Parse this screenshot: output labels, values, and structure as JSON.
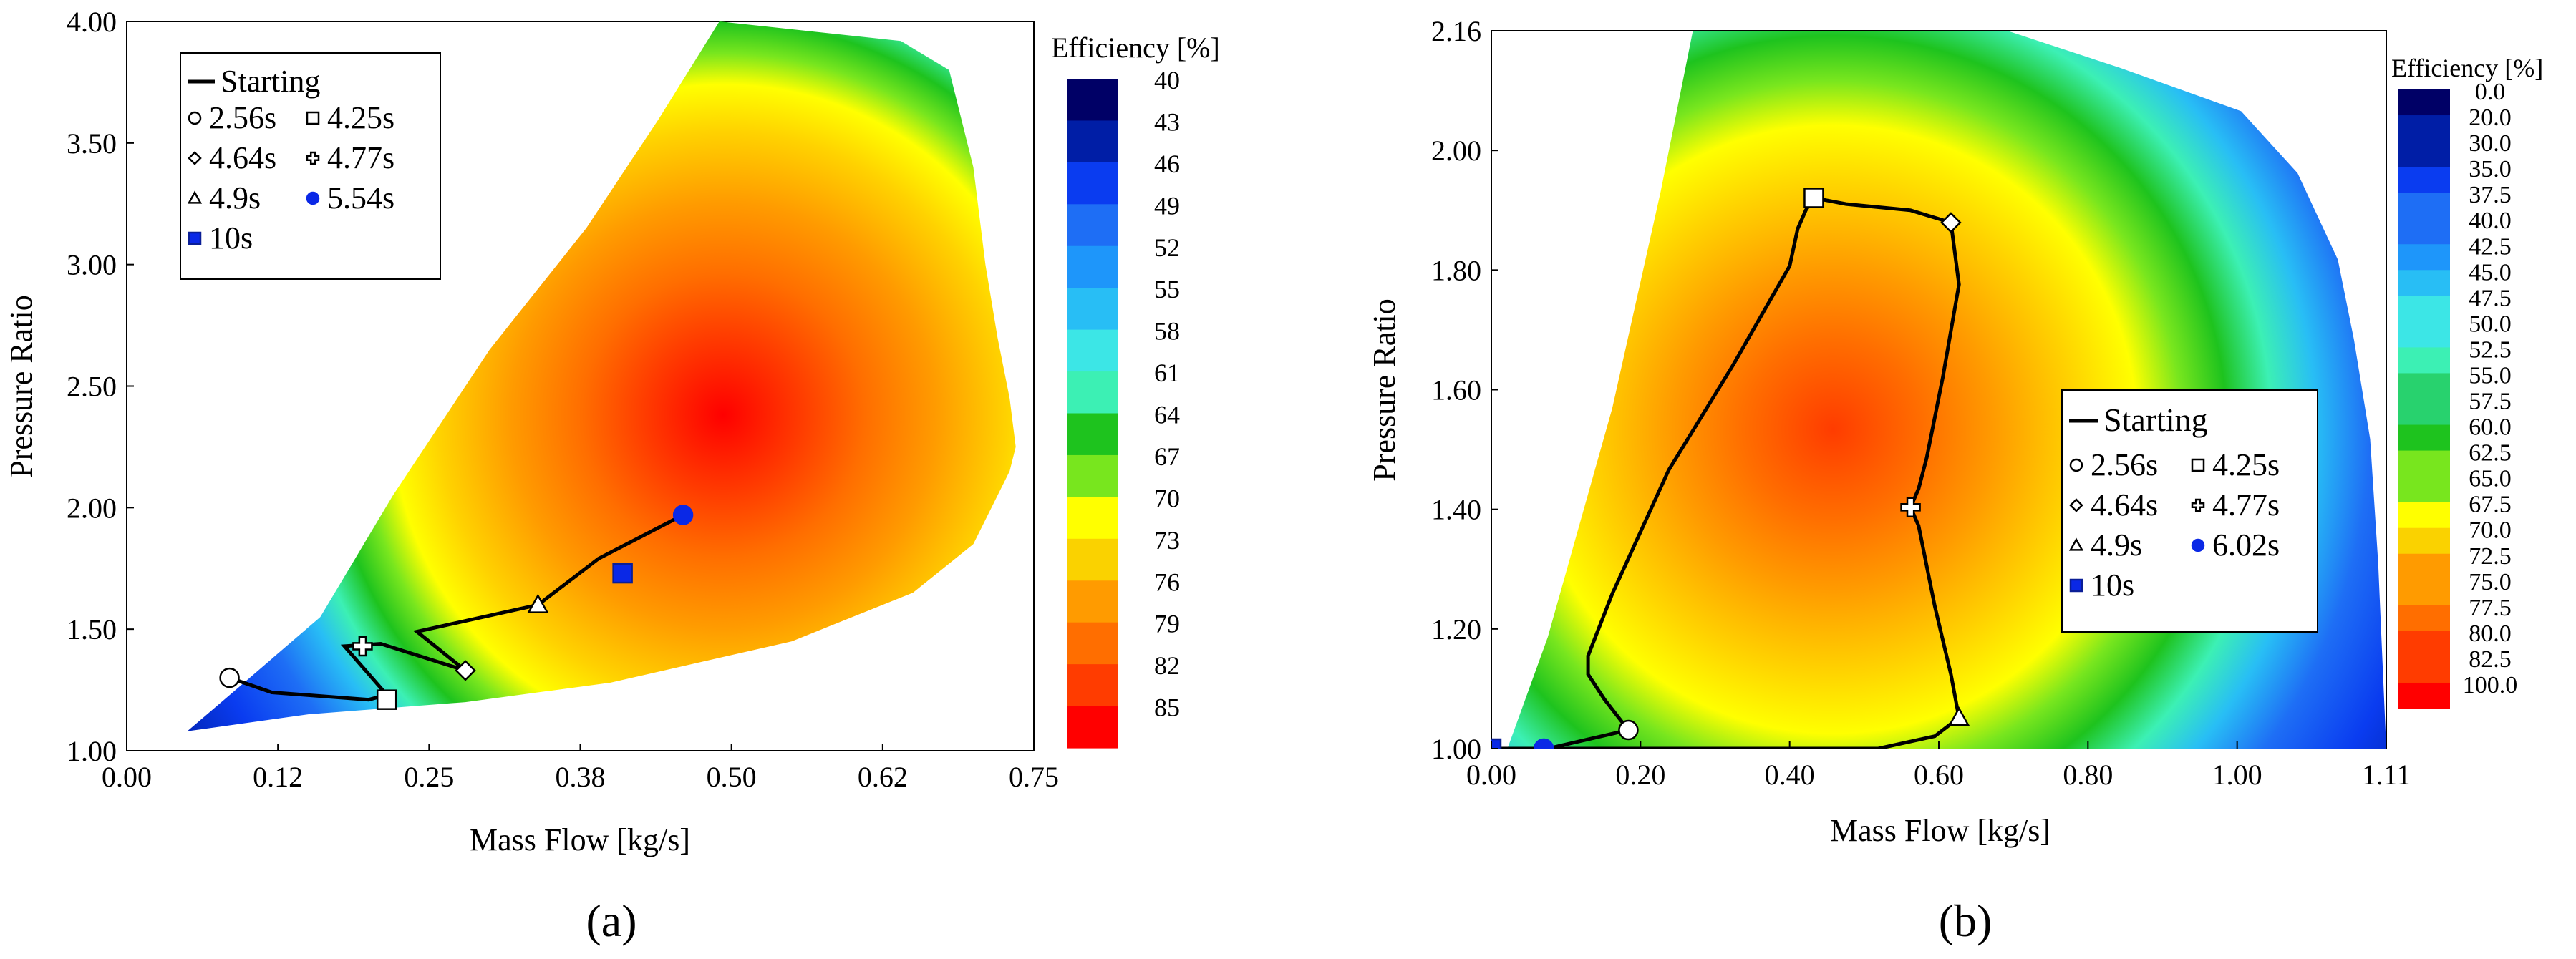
{
  "figure": {
    "panels": [
      {
        "label": "(a)",
        "xlabel": "Mass Flow [kg/s]",
        "ylabel": "Pressure Ratio",
        "xticks": [
          "0.00",
          "0.12",
          "0.25",
          "0.38",
          "0.50",
          "0.62",
          "0.75"
        ],
        "yticks": [
          "1.00",
          "1.50",
          "2.00",
          "2.50",
          "3.00",
          "3.50",
          "4.00"
        ],
        "colorbar_title": "Efficiency [%]",
        "colorbar_labels": [
          "40",
          "43",
          "46",
          "49",
          "52",
          "55",
          "58",
          "61",
          "64",
          "67",
          "70",
          "73",
          "76",
          "79",
          "82",
          "85"
        ],
        "legend": {
          "line_label": "Starting",
          "markers": [
            {
              "symbol": "open-circle",
              "label": "2.56s"
            },
            {
              "symbol": "open-square",
              "label": "4.25s"
            },
            {
              "symbol": "open-diamond",
              "label": "4.64s"
            },
            {
              "symbol": "open-cross",
              "label": "4.77s"
            },
            {
              "symbol": "open-triangle",
              "label": "4.9s"
            },
            {
              "symbol": "filled-circle",
              "label": "5.54s"
            },
            {
              "symbol": "filled-square",
              "label": "10s"
            }
          ]
        }
      },
      {
        "label": "(b)",
        "xlabel": "Mass Flow [kg/s]",
        "ylabel": "Pressure Ratio",
        "xticks": [
          "0.00",
          "0.20",
          "0.40",
          "0.60",
          "0.80",
          "1.00",
          "1.11"
        ],
        "yticks": [
          "1.00",
          "1.20",
          "1.40",
          "1.60",
          "1.80",
          "2.00",
          "2.16"
        ],
        "colorbar_title": "Efficiency [%]",
        "colorbar_labels": [
          "0.0",
          "20.0",
          "30.0",
          "35.0",
          "37.5",
          "40.0",
          "42.5",
          "45.0",
          "47.5",
          "50.0",
          "52.5",
          "55.0",
          "57.5",
          "60.0",
          "62.5",
          "65.0",
          "67.5",
          "70.0",
          "72.5",
          "75.0",
          "77.5",
          "80.0",
          "82.5",
          "100.0"
        ],
        "legend": {
          "line_label": "Starting",
          "markers": [
            {
              "symbol": "open-circle",
              "label": "2.56s"
            },
            {
              "symbol": "open-square",
              "label": "4.25s"
            },
            {
              "symbol": "open-diamond",
              "label": "4.64s"
            },
            {
              "symbol": "open-cross",
              "label": "4.77s"
            },
            {
              "symbol": "open-triangle",
              "label": "4.9s"
            },
            {
              "symbol": "filled-circle",
              "label": "6.02s"
            },
            {
              "symbol": "filled-square",
              "label": "10s"
            }
          ]
        }
      }
    ]
  },
  "chart_data": [
    {
      "type": "heatmap",
      "title": "(a)",
      "xlabel": "Mass Flow [kg/s]",
      "ylabel": "Pressure Ratio",
      "xlim": [
        0,
        0.75
      ],
      "ylim": [
        1,
        4
      ],
      "grid": false,
      "legend_position": "top-left",
      "colorbar": {
        "title": "Efficiency [%]",
        "levels": [
          40,
          43,
          46,
          49,
          52,
          55,
          58,
          61,
          64,
          67,
          70,
          73,
          76,
          79,
          82,
          85
        ],
        "colors": [
          "#000066",
          "#001ea6",
          "#0a3cf0",
          "#1e6ef5",
          "#1e96fa",
          "#28bef5",
          "#3ce6e6",
          "#3cf0b4",
          "#28d26e",
          "#1ec31e",
          "#78e61e",
          "#ffff00",
          "#fad200",
          "#ff9b00",
          "#ff6e00",
          "#ff3c00",
          "#ff0000"
        ]
      },
      "fill_boundary": [
        [
          0.05,
          1.08
        ],
        [
          0.09,
          1.25
        ],
        [
          0.16,
          1.55
        ],
        [
          0.22,
          2.05
        ],
        [
          0.3,
          2.65
        ],
        [
          0.38,
          3.15
        ],
        [
          0.44,
          3.6
        ],
        [
          0.49,
          4.0
        ],
        [
          0.64,
          3.92
        ],
        [
          0.68,
          3.8
        ],
        [
          0.7,
          3.4
        ],
        [
          0.71,
          3.0
        ],
        [
          0.72,
          2.7
        ],
        [
          0.73,
          2.45
        ],
        [
          0.735,
          2.25
        ],
        [
          0.73,
          2.15
        ],
        [
          0.7,
          1.85
        ],
        [
          0.65,
          1.65
        ],
        [
          0.55,
          1.45
        ],
        [
          0.4,
          1.28
        ],
        [
          0.28,
          1.2
        ],
        [
          0.15,
          1.15
        ],
        [
          0.05,
          1.08
        ]
      ],
      "series": [
        {
          "name": "Starting",
          "x": [
            0.085,
            0.12,
            0.2,
            0.215,
            0.18,
            0.21,
            0.28,
            0.24,
            0.34,
            0.39,
            0.46
          ],
          "y": [
            1.3,
            1.24,
            1.21,
            1.23,
            1.43,
            1.44,
            1.33,
            1.49,
            1.6,
            1.79,
            1.97
          ]
        }
      ],
      "markers": [
        {
          "label": "2.56s",
          "symbol": "open-circle",
          "x": 0.085,
          "y": 1.3
        },
        {
          "label": "4.25s",
          "symbol": "open-square",
          "x": 0.215,
          "y": 1.21
        },
        {
          "label": "4.64s",
          "symbol": "open-diamond",
          "x": 0.28,
          "y": 1.33
        },
        {
          "label": "4.77s",
          "symbol": "open-cross",
          "x": 0.195,
          "y": 1.43
        },
        {
          "label": "4.9s",
          "symbol": "open-triangle",
          "x": 0.34,
          "y": 1.6
        },
        {
          "label": "5.54s",
          "symbol": "filled-circle",
          "x": 0.46,
          "y": 1.97
        },
        {
          "label": "10s",
          "symbol": "filled-square",
          "x": 0.41,
          "y": 1.73
        }
      ]
    },
    {
      "type": "heatmap",
      "title": "(b)",
      "xlabel": "Mass Flow [kg/s]",
      "ylabel": "Pressure Ratio",
      "xlim": [
        0,
        1.11
      ],
      "ylim": [
        1,
        2.16
      ],
      "grid": false,
      "legend_position": "center-right",
      "colorbar": {
        "title": "Efficiency [%]",
        "levels": [
          0,
          20,
          30,
          35,
          37.5,
          40,
          42.5,
          45,
          47.5,
          50,
          52.5,
          55,
          57.5,
          60,
          62.5,
          65,
          67.5,
          70,
          72.5,
          75,
          77.5,
          80,
          82.5,
          100
        ],
        "colors": [
          "#000066",
          "#001ea6",
          "#0a3cf0",
          "#1e6ef5",
          "#1e96fa",
          "#28bef5",
          "#3ce6e6",
          "#3cf0b4",
          "#28d26e",
          "#1ec31e",
          "#78e61e",
          "#ffff00",
          "#fad200",
          "#ff9b00",
          "#ff6e00",
          "#ff3c00",
          "#ff0000"
        ]
      },
      "fill_boundary": [
        [
          0.02,
          1.0
        ],
        [
          0.07,
          1.18
        ],
        [
          0.15,
          1.55
        ],
        [
          0.21,
          1.9
        ],
        [
          0.25,
          2.16
        ],
        [
          0.64,
          2.16
        ],
        [
          0.78,
          2.1
        ],
        [
          0.93,
          2.03
        ],
        [
          1.0,
          1.93
        ],
        [
          1.05,
          1.79
        ],
        [
          1.07,
          1.66
        ],
        [
          1.09,
          1.5
        ],
        [
          1.1,
          1.3
        ],
        [
          1.11,
          1.0
        ],
        [
          0.02,
          1.0
        ]
      ],
      "series": [
        {
          "name": "Starting",
          "x": [
            0.0,
            0.02,
            0.07,
            0.17,
            0.14,
            0.12,
            0.12,
            0.15,
            0.22,
            0.3,
            0.37,
            0.38,
            0.39,
            0.4,
            0.44,
            0.52,
            0.57,
            0.58,
            0.56,
            0.54,
            0.53,
            0.52,
            0.53,
            0.55,
            0.57,
            0.58,
            0.55,
            0.48,
            0.4,
            0.3,
            0.2,
            0.1,
            0.0
          ],
          "y": [
            1.0,
            1.0,
            1.0,
            1.03,
            1.08,
            1.12,
            1.15,
            1.25,
            1.45,
            1.62,
            1.78,
            1.84,
            1.87,
            1.89,
            1.88,
            1.87,
            1.85,
            1.75,
            1.6,
            1.47,
            1.42,
            1.39,
            1.36,
            1.23,
            1.12,
            1.05,
            1.02,
            1.0,
            1.0,
            1.0,
            1.0,
            1.0,
            1.0
          ]
        }
      ],
      "markers": [
        {
          "label": "2.56s",
          "symbol": "open-circle",
          "x": 0.17,
          "y": 1.03
        },
        {
          "label": "4.25s",
          "symbol": "open-square",
          "x": 0.4,
          "y": 1.89
        },
        {
          "label": "4.64s",
          "symbol": "open-diamond",
          "x": 0.57,
          "y": 1.85
        },
        {
          "label": "4.77s",
          "symbol": "open-cross",
          "x": 0.52,
          "y": 1.39
        },
        {
          "label": "4.9s",
          "symbol": "open-triangle",
          "x": 0.58,
          "y": 1.05
        },
        {
          "label": "6.02s",
          "symbol": "filled-circle",
          "x": 0.065,
          "y": 1.0
        },
        {
          "label": "10s",
          "symbol": "filled-square",
          "x": 0.0,
          "y": 1.0
        }
      ]
    }
  ]
}
